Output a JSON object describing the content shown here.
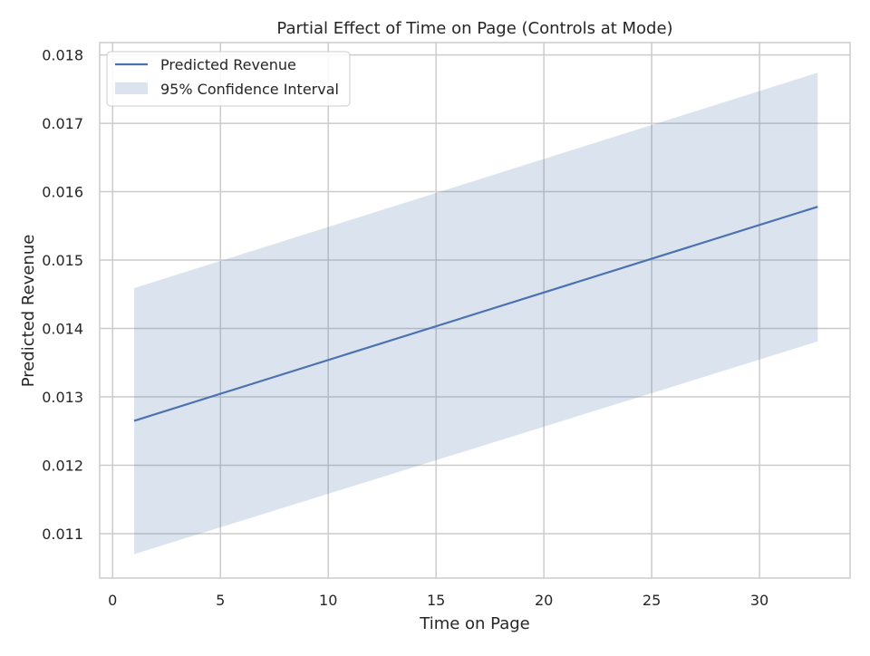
{
  "chart_data": {
    "type": "line",
    "title": "Partial Effect of Time on Page (Controls at Mode)",
    "xlabel": "Time on Page",
    "ylabel": "Predicted Revenue",
    "xlim": [
      -0.6,
      34.2
    ],
    "ylim": [
      0.01035,
      0.01818
    ],
    "x_ticks": [
      0,
      5,
      10,
      15,
      20,
      25,
      30
    ],
    "x_tick_labels": [
      "0",
      "5",
      "10",
      "15",
      "20",
      "25",
      "30"
    ],
    "y_ticks": [
      0.011,
      0.012,
      0.013,
      0.014,
      0.015,
      0.016,
      0.017,
      0.018
    ],
    "y_tick_labels": [
      "0.011",
      "0.012",
      "0.013",
      "0.014",
      "0.015",
      "0.016",
      "0.017",
      "0.018"
    ],
    "grid": true,
    "legend_position": "top-left",
    "series": [
      {
        "name": "Predicted Revenue",
        "kind": "line",
        "color": "#4c72b0",
        "x": [
          1,
          32.7
        ],
        "y": [
          0.01265,
          0.01578
        ]
      },
      {
        "name": "95% Confidence Interval",
        "kind": "band",
        "color": "#4c72b0",
        "opacity": 0.2,
        "x": [
          1,
          32.7
        ],
        "lower": [
          0.0107,
          0.01381
        ],
        "upper": [
          0.01459,
          0.01774
        ]
      }
    ],
    "colors": {
      "line": "#4c72b0",
      "grid": "#cccccc",
      "spine": "#cccccc",
      "text": "#262626"
    }
  }
}
